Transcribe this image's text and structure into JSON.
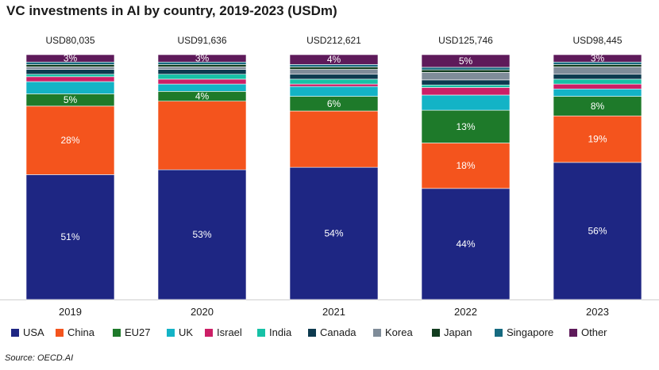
{
  "title": "VC investments in AI by country, 2019-2023 (USDm)",
  "source": "Source: OECD.AI",
  "chart_data": {
    "type": "bar",
    "stacked": true,
    "normalized": true,
    "title": "VC investments in AI by country, 2019-2023 (USDm)",
    "categories": [
      "2019",
      "2020",
      "2021",
      "2022",
      "2023"
    ],
    "totals": [
      "USD80,035",
      "USD91,636",
      "USD212,621",
      "USD125,746",
      "USD98,445"
    ],
    "ylim": [
      0,
      100
    ],
    "grid": false,
    "legend_position": "bottom",
    "series": [
      {
        "name": "USA",
        "color": "#1e2683",
        "values": [
          51,
          53,
          54,
          44,
          56
        ]
      },
      {
        "name": "China",
        "color": "#f4541d",
        "values": [
          28,
          28,
          23,
          18,
          19
        ]
      },
      {
        "name": "EU27",
        "color": "#1e7a2a",
        "values": [
          5,
          4,
          6,
          13,
          8
        ]
      },
      {
        "name": "UK",
        "color": "#13b3c6",
        "values": [
          5,
          3,
          4,
          6,
          3
        ]
      },
      {
        "name": "Israel",
        "color": "#cc1f66",
        "values": [
          2,
          2,
          1,
          3,
          2
        ]
      },
      {
        "name": "India",
        "color": "#16c1a6",
        "values": [
          1,
          2,
          2,
          1,
          2
        ]
      },
      {
        "name": "Canada",
        "color": "#0d3a4f",
        "values": [
          2,
          2,
          2,
          2,
          2
        ]
      },
      {
        "name": "Korea",
        "color": "#7f8c99",
        "values": [
          1,
          1,
          2,
          3,
          3
        ]
      },
      {
        "name": "Japan",
        "color": "#123d1f",
        "values": [
          1,
          1,
          1,
          1,
          1
        ]
      },
      {
        "name": "Singapore",
        "color": "#166a80",
        "values": [
          1,
          1,
          1,
          1,
          1
        ]
      },
      {
        "name": "Other",
        "color": "#5e1a5a",
        "values": [
          3,
          3,
          4,
          5,
          3
        ]
      }
    ],
    "data_labels": {
      "USA": [
        "51%",
        "53%",
        "54%",
        "44%",
        "56%"
      ],
      "China": [
        "28%",
        "",
        "",
        "18%",
        "19%"
      ],
      "EU27": [
        "5%",
        "4%",
        "6%",
        "13%",
        "8%"
      ],
      "Other": [
        "3%",
        "3%",
        "4%",
        "5%",
        "3%"
      ]
    }
  }
}
